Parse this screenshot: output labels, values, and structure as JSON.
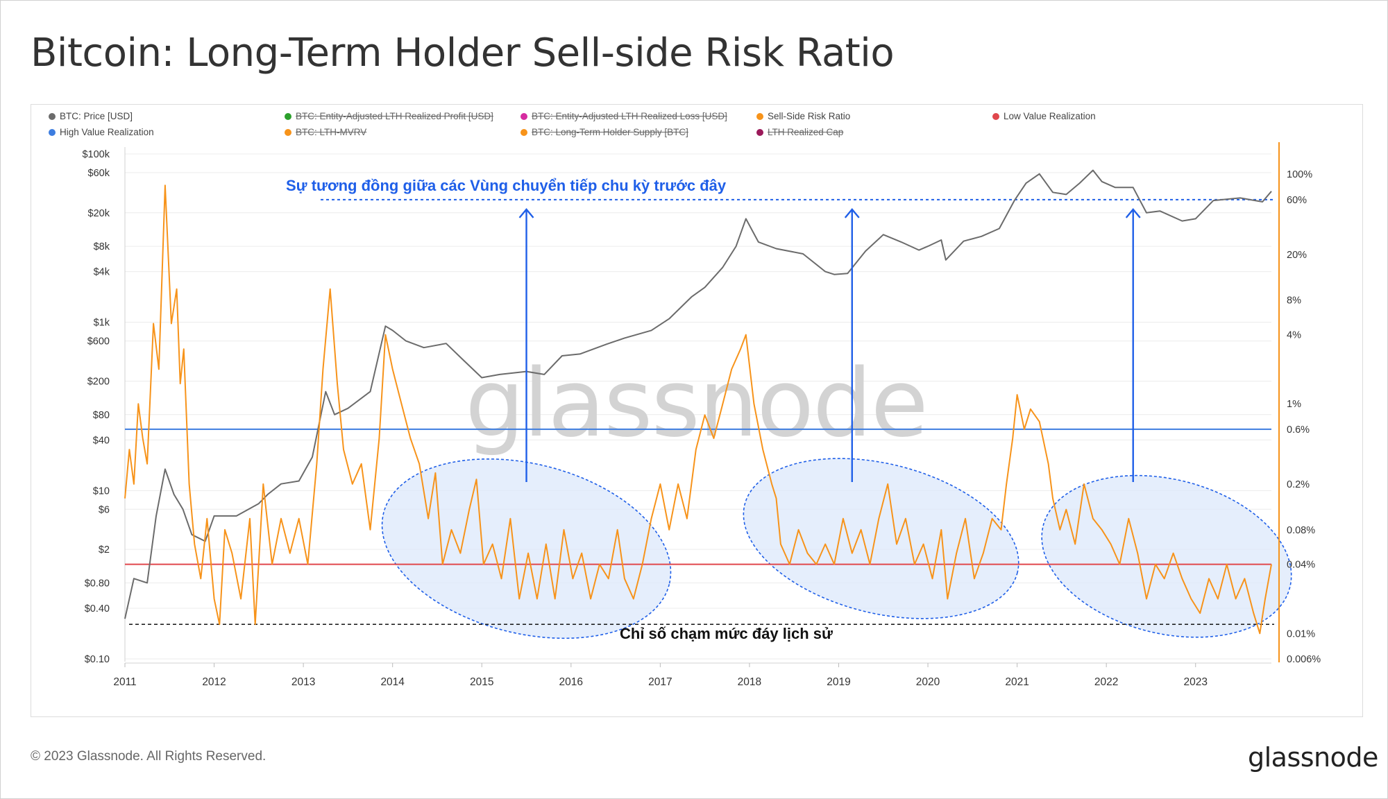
{
  "title": "Bitcoin: Long-Term Holder Sell-side Risk Ratio",
  "footer": {
    "copyright": "© 2023 Glassnode. All Rights Reserved.",
    "logo": "glassnode"
  },
  "watermark": "glassnode",
  "colors": {
    "price": "#6b6b6b",
    "ssr": "#f7931a",
    "low": "#e0474c",
    "high": "#3d7de0",
    "annotation": "#1f5fe8",
    "ellipse_fill": "#dce8fb",
    "grid": "#ececec"
  },
  "legend": [
    {
      "label": "BTC: Price [USD]",
      "color": "#6b6b6b",
      "active": true,
      "icon": "legend-dot-icon"
    },
    {
      "label": "BTC: Entity-Adjusted LTH Realized Profit [USD]",
      "color": "#2ca02c",
      "active": false,
      "icon": "legend-dot-icon"
    },
    {
      "label": "BTC: Entity-Adjusted LTH Realized Loss [USD]",
      "color": "#d62ba0",
      "active": false,
      "icon": "legend-dot-icon"
    },
    {
      "label": "Sell-Side Risk Ratio",
      "color": "#f7931a",
      "active": true,
      "icon": "legend-dot-icon"
    },
    {
      "label": "Low Value Realization",
      "color": "#e0474c",
      "active": true,
      "icon": "legend-dot-icon"
    },
    {
      "label": "High Value Realization",
      "color": "#3d7de0",
      "active": true,
      "icon": "legend-dot-icon"
    },
    {
      "label": "BTC: LTH-MVRV",
      "color": "#f7931a",
      "active": false,
      "icon": "legend-dot-icon"
    },
    {
      "label": "BTC: Long-Term Holder Supply [BTC]",
      "color": "#f7931a",
      "active": false,
      "icon": "legend-dot-icon"
    },
    {
      "label": "LTH Realized Cap",
      "color": "#9b1a5a",
      "active": false,
      "icon": "legend-dot-icon"
    }
  ],
  "annotations": {
    "top_text": "Sự tương đồng giữa các Vùng chuyển tiếp chu kỳ trước đây",
    "bottom_text": "Chỉ số chạm mức đáy lịch sử"
  },
  "chart_data": {
    "type": "line",
    "x_ticks": [
      "2011",
      "2012",
      "2013",
      "2014",
      "2015",
      "2016",
      "2017",
      "2018",
      "2019",
      "2020",
      "2021",
      "2022",
      "2023"
    ],
    "x_range": [
      2011.0,
      2023.85
    ],
    "y_left": {
      "scale": "log",
      "range": [
        0.1,
        100000
      ],
      "ticks": [
        {
          "value": 100000,
          "label": "$100k"
        },
        {
          "value": 60000,
          "label": "$60k"
        },
        {
          "value": 20000,
          "label": "$20k"
        },
        {
          "value": 8000,
          "label": "$8k"
        },
        {
          "value": 4000,
          "label": "$4k"
        },
        {
          "value": 1000,
          "label": "$1k"
        },
        {
          "value": 600,
          "label": "$600"
        },
        {
          "value": 200,
          "label": "$200"
        },
        {
          "value": 80,
          "label": "$80"
        },
        {
          "value": 40,
          "label": "$40"
        },
        {
          "value": 10,
          "label": "$10"
        },
        {
          "value": 6,
          "label": "$6"
        },
        {
          "value": 2,
          "label": "$2"
        },
        {
          "value": 0.8,
          "label": "$0.80"
        },
        {
          "value": 0.4,
          "label": "$0.40"
        },
        {
          "value": 0.1,
          "label": "$0.10"
        }
      ]
    },
    "y_right": {
      "scale": "log",
      "range": [
        0.006,
        150
      ],
      "ticks": [
        {
          "value": 100,
          "label": "100%"
        },
        {
          "value": 60,
          "label": "60%"
        },
        {
          "value": 20,
          "label": "20%"
        },
        {
          "value": 8,
          "label": "8%"
        },
        {
          "value": 4,
          "label": "4%"
        },
        {
          "value": 1,
          "label": "1%"
        },
        {
          "value": 0.6,
          "label": "0.6%"
        },
        {
          "value": 0.2,
          "label": "0.2%"
        },
        {
          "value": 0.08,
          "label": "0.08%"
        },
        {
          "value": 0.04,
          "label": "0.04%"
        },
        {
          "value": 0.01,
          "label": "0.01%"
        },
        {
          "value": 0.006,
          "label": "0.006%"
        }
      ]
    },
    "series": [
      {
        "name": "BTC: Price [USD]",
        "axis": "left",
        "points": [
          [
            2011.0,
            0.3
          ],
          [
            2011.1,
            0.9
          ],
          [
            2011.25,
            0.8
          ],
          [
            2011.35,
            5
          ],
          [
            2011.45,
            18
          ],
          [
            2011.55,
            9
          ],
          [
            2011.65,
            6
          ],
          [
            2011.75,
            3
          ],
          [
            2011.9,
            2.5
          ],
          [
            2012.0,
            5
          ],
          [
            2012.25,
            5
          ],
          [
            2012.5,
            7
          ],
          [
            2012.6,
            9
          ],
          [
            2012.75,
            12
          ],
          [
            2012.95,
            13
          ],
          [
            2013.1,
            25
          ],
          [
            2013.25,
            150
          ],
          [
            2013.35,
            80
          ],
          [
            2013.5,
            95
          ],
          [
            2013.75,
            150
          ],
          [
            2013.92,
            900
          ],
          [
            2014.0,
            800
          ],
          [
            2014.15,
            600
          ],
          [
            2014.35,
            500
          ],
          [
            2014.6,
            560
          ],
          [
            2014.8,
            350
          ],
          [
            2015.0,
            220
          ],
          [
            2015.2,
            240
          ],
          [
            2015.5,
            260
          ],
          [
            2015.7,
            240
          ],
          [
            2015.9,
            400
          ],
          [
            2016.1,
            420
          ],
          [
            2016.4,
            550
          ],
          [
            2016.6,
            650
          ],
          [
            2016.9,
            800
          ],
          [
            2017.1,
            1100
          ],
          [
            2017.35,
            2000
          ],
          [
            2017.5,
            2600
          ],
          [
            2017.7,
            4500
          ],
          [
            2017.85,
            8000
          ],
          [
            2017.96,
            17000
          ],
          [
            2018.1,
            9000
          ],
          [
            2018.3,
            7500
          ],
          [
            2018.6,
            6500
          ],
          [
            2018.85,
            4000
          ],
          [
            2018.95,
            3700
          ],
          [
            2019.1,
            3800
          ],
          [
            2019.3,
            7000
          ],
          [
            2019.5,
            11000
          ],
          [
            2019.7,
            9000
          ],
          [
            2019.9,
            7200
          ],
          [
            2020.0,
            8000
          ],
          [
            2020.15,
            9500
          ],
          [
            2020.2,
            5500
          ],
          [
            2020.4,
            9200
          ],
          [
            2020.6,
            10500
          ],
          [
            2020.8,
            13000
          ],
          [
            2020.97,
            28000
          ],
          [
            2021.1,
            45000
          ],
          [
            2021.25,
            58000
          ],
          [
            2021.4,
            35000
          ],
          [
            2021.55,
            33000
          ],
          [
            2021.7,
            45000
          ],
          [
            2021.85,
            64000
          ],
          [
            2021.95,
            47000
          ],
          [
            2022.1,
            40000
          ],
          [
            2022.3,
            40000
          ],
          [
            2022.45,
            20000
          ],
          [
            2022.6,
            21000
          ],
          [
            2022.85,
            16000
          ],
          [
            2023.0,
            17000
          ],
          [
            2023.2,
            28000
          ],
          [
            2023.5,
            30000
          ],
          [
            2023.75,
            27000
          ],
          [
            2023.85,
            36000
          ]
        ]
      },
      {
        "name": "Sell-Side Risk Ratio",
        "axis": "right",
        "points": [
          [
            2011.0,
            0.15
          ],
          [
            2011.05,
            0.4
          ],
          [
            2011.1,
            0.2
          ],
          [
            2011.15,
            1.0
          ],
          [
            2011.2,
            0.5
          ],
          [
            2011.25,
            0.3
          ],
          [
            2011.32,
            5
          ],
          [
            2011.38,
            2
          ],
          [
            2011.45,
            80
          ],
          [
            2011.52,
            5
          ],
          [
            2011.58,
            10
          ],
          [
            2011.62,
            1.5
          ],
          [
            2011.66,
            3
          ],
          [
            2011.72,
            0.2
          ],
          [
            2011.78,
            0.06
          ],
          [
            2011.85,
            0.03
          ],
          [
            2011.92,
            0.1
          ],
          [
            2012.0,
            0.02
          ],
          [
            2012.06,
            0.012
          ],
          [
            2012.12,
            0.08
          ],
          [
            2012.2,
            0.05
          ],
          [
            2012.3,
            0.02
          ],
          [
            2012.4,
            0.1
          ],
          [
            2012.46,
            0.012
          ],
          [
            2012.55,
            0.2
          ],
          [
            2012.65,
            0.04
          ],
          [
            2012.75,
            0.1
          ],
          [
            2012.85,
            0.05
          ],
          [
            2012.95,
            0.1
          ],
          [
            2013.05,
            0.04
          ],
          [
            2013.15,
            0.3
          ],
          [
            2013.22,
            2
          ],
          [
            2013.3,
            10
          ],
          [
            2013.38,
            1.5
          ],
          [
            2013.45,
            0.4
          ],
          [
            2013.55,
            0.2
          ],
          [
            2013.65,
            0.3
          ],
          [
            2013.75,
            0.08
          ],
          [
            2013.85,
            0.5
          ],
          [
            2013.92,
            4
          ],
          [
            2014.0,
            2
          ],
          [
            2014.1,
            1.0
          ],
          [
            2014.2,
            0.5
          ],
          [
            2014.3,
            0.3
          ],
          [
            2014.4,
            0.1
          ],
          [
            2014.48,
            0.25
          ],
          [
            2014.56,
            0.04
          ],
          [
            2014.66,
            0.08
          ],
          [
            2014.76,
            0.05
          ],
          [
            2014.86,
            0.12
          ],
          [
            2014.94,
            0.22
          ],
          [
            2015.02,
            0.04
          ],
          [
            2015.12,
            0.06
          ],
          [
            2015.22,
            0.03
          ],
          [
            2015.32,
            0.1
          ],
          [
            2015.42,
            0.02
          ],
          [
            2015.52,
            0.05
          ],
          [
            2015.62,
            0.02
          ],
          [
            2015.72,
            0.06
          ],
          [
            2015.82,
            0.02
          ],
          [
            2015.92,
            0.08
          ],
          [
            2016.02,
            0.03
          ],
          [
            2016.12,
            0.05
          ],
          [
            2016.22,
            0.02
          ],
          [
            2016.32,
            0.04
          ],
          [
            2016.42,
            0.03
          ],
          [
            2016.52,
            0.08
          ],
          [
            2016.6,
            0.03
          ],
          [
            2016.7,
            0.02
          ],
          [
            2016.8,
            0.04
          ],
          [
            2016.9,
            0.1
          ],
          [
            2017.0,
            0.2
          ],
          [
            2017.1,
            0.08
          ],
          [
            2017.2,
            0.2
          ],
          [
            2017.3,
            0.1
          ],
          [
            2017.4,
            0.4
          ],
          [
            2017.5,
            0.8
          ],
          [
            2017.6,
            0.5
          ],
          [
            2017.7,
            1.0
          ],
          [
            2017.8,
            2
          ],
          [
            2017.9,
            3
          ],
          [
            2017.96,
            4
          ],
          [
            2018.05,
            1
          ],
          [
            2018.15,
            0.4
          ],
          [
            2018.25,
            0.2
          ],
          [
            2018.3,
            0.15
          ],
          [
            2018.35,
            0.06
          ],
          [
            2018.45,
            0.04
          ],
          [
            2018.55,
            0.08
          ],
          [
            2018.65,
            0.05
          ],
          [
            2018.75,
            0.04
          ],
          [
            2018.85,
            0.06
          ],
          [
            2018.95,
            0.04
          ],
          [
            2019.05,
            0.1
          ],
          [
            2019.15,
            0.05
          ],
          [
            2019.25,
            0.08
          ],
          [
            2019.35,
            0.04
          ],
          [
            2019.45,
            0.1
          ],
          [
            2019.55,
            0.2
          ],
          [
            2019.65,
            0.06
          ],
          [
            2019.75,
            0.1
          ],
          [
            2019.85,
            0.04
          ],
          [
            2019.95,
            0.06
          ],
          [
            2020.05,
            0.03
          ],
          [
            2020.15,
            0.08
          ],
          [
            2020.22,
            0.02
          ],
          [
            2020.32,
            0.05
          ],
          [
            2020.42,
            0.1
          ],
          [
            2020.52,
            0.03
          ],
          [
            2020.62,
            0.05
          ],
          [
            2020.72,
            0.1
          ],
          [
            2020.82,
            0.08
          ],
          [
            2020.88,
            0.2
          ],
          [
            2020.95,
            0.5
          ],
          [
            2021.0,
            1.2
          ],
          [
            2021.08,
            0.6
          ],
          [
            2021.15,
            0.9
          ],
          [
            2021.25,
            0.7
          ],
          [
            2021.35,
            0.3
          ],
          [
            2021.4,
            0.15
          ],
          [
            2021.48,
            0.08
          ],
          [
            2021.55,
            0.12
          ],
          [
            2021.65,
            0.06
          ],
          [
            2021.75,
            0.2
          ],
          [
            2021.85,
            0.1
          ],
          [
            2021.95,
            0.08
          ],
          [
            2022.05,
            0.06
          ],
          [
            2022.15,
            0.04
          ],
          [
            2022.25,
            0.1
          ],
          [
            2022.35,
            0.05
          ],
          [
            2022.45,
            0.02
          ],
          [
            2022.55,
            0.04
          ],
          [
            2022.65,
            0.03
          ],
          [
            2022.75,
            0.05
          ],
          [
            2022.85,
            0.03
          ],
          [
            2022.95,
            0.02
          ],
          [
            2023.05,
            0.015
          ],
          [
            2023.15,
            0.03
          ],
          [
            2023.25,
            0.02
          ],
          [
            2023.35,
            0.04
          ],
          [
            2023.45,
            0.02
          ],
          [
            2023.55,
            0.03
          ],
          [
            2023.65,
            0.015
          ],
          [
            2023.72,
            0.01
          ],
          [
            2023.78,
            0.02
          ],
          [
            2023.85,
            0.04
          ]
        ]
      }
    ],
    "reference_lines": [
      {
        "name": "High Value Realization",
        "axis": "right",
        "value": 0.6,
        "color": "#3d7de0"
      },
      {
        "name": "Low Value Realization",
        "axis": "right",
        "value": 0.04,
        "color": "#e0474c"
      },
      {
        "name": "historical-bottom",
        "axis": "right",
        "value": 0.012,
        "style": "dashed",
        "color": "#222"
      },
      {
        "name": "cycle-top-band",
        "axis": "right",
        "value": 60,
        "style": "dotted",
        "color": "#1f5fe8"
      }
    ],
    "highlight_zones": [
      {
        "x_range": [
          2013.85,
          2017.15
        ],
        "y_right_range": [
          0.01,
          0.3
        ]
      },
      {
        "x_range": [
          2017.9,
          2021.05
        ],
        "y_right_range": [
          0.015,
          0.3
        ]
      },
      {
        "x_range": [
          2021.25,
          2024.1
        ],
        "y_right_range": [
          0.01,
          0.22
        ]
      }
    ],
    "arrows_at_x": [
      2015.5,
      2019.15,
      2022.3
    ],
    "grid": true
  }
}
